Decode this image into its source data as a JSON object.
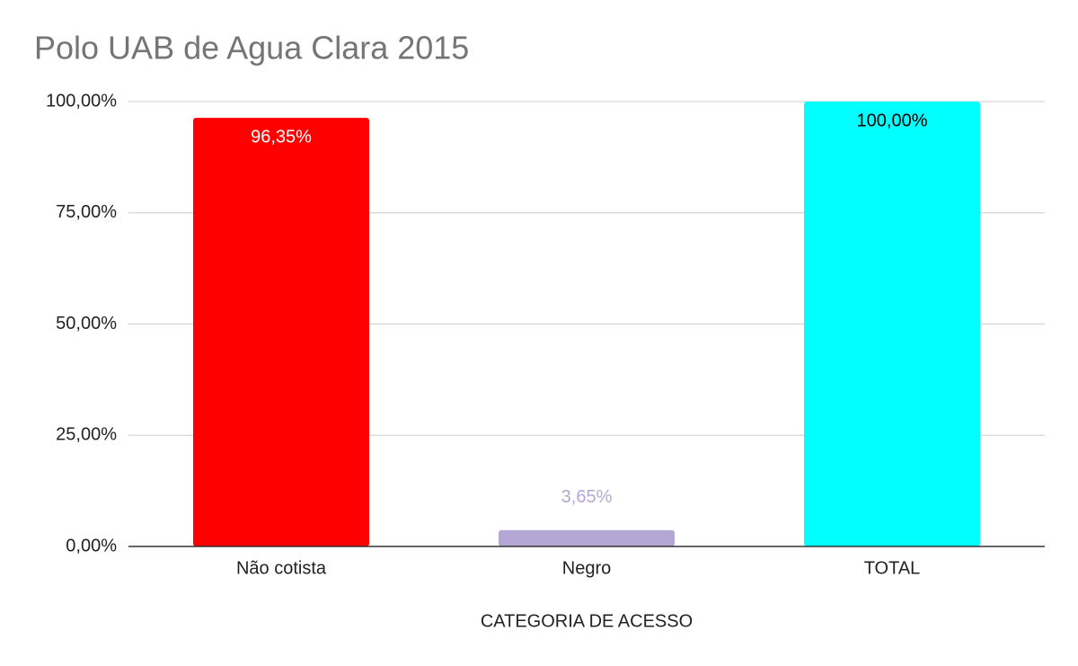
{
  "chart_data": {
    "type": "bar",
    "title": "Polo UAB de Agua Clara 2015",
    "x_label": "CATEGORIA DE ACESSO",
    "categories": [
      "Não cotista",
      "Negro",
      "TOTAL"
    ],
    "values": [
      96.35,
      3.65,
      100
    ],
    "value_labels": [
      "96,35%",
      "3,65%",
      "100,00%"
    ],
    "colors": [
      "#ff0000",
      "#b4a7d6",
      "#00ffff"
    ],
    "label_colors": [
      "#ffffff",
      "#b4a7d6",
      "#000000"
    ],
    "ylim": [
      0,
      100
    ],
    "yticks": [
      {
        "value": 0,
        "label": "0,00%"
      },
      {
        "value": 25,
        "label": "25,00%"
      },
      {
        "value": 50,
        "label": "50,00%"
      },
      {
        "value": 75,
        "label": "75,00%"
      },
      {
        "value": 100,
        "label": "100,00%"
      }
    ],
    "grid": true
  }
}
